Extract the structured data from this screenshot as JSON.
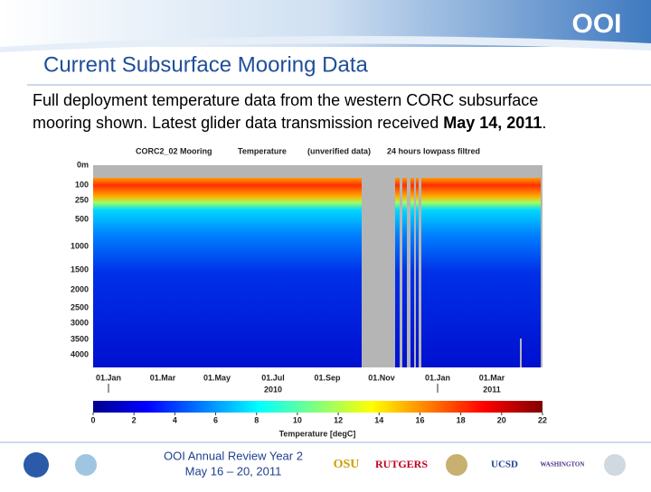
{
  "header": {
    "logo": "OOI",
    "title": "Current Subsurface Mooring Data"
  },
  "body": {
    "lines": [
      "Full deployment temperature data from the western CORC subsurface",
      "mooring shown.  Latest glider data transmission received "
    ],
    "bold": "May 14, 2011",
    "end": "."
  },
  "figure": {
    "titles": [
      "CORC2_02 Mooring",
      "Temperature",
      "(unverified data)",
      "24 hours lowpass filtred"
    ],
    "depth_labels": [
      "0m",
      "100",
      "250",
      "500",
      "1000",
      "1500",
      "2000",
      "2500",
      "3000",
      "3500",
      "4000"
    ],
    "month_labels": [
      "01.Jan",
      "01.Mar",
      "01.May",
      "01.Jul",
      "01.Sep",
      "01.Nov",
      "01.Jan",
      "01.Mar"
    ],
    "years": [
      "2010",
      "2011"
    ],
    "colorbar": {
      "ticks": [
        0,
        2,
        4,
        6,
        8,
        10,
        12,
        14,
        16,
        18,
        20,
        22
      ],
      "label": "Temperature  [degC]"
    }
  },
  "footer": {
    "lines": [
      "OOI Annual Review Year 2",
      "May 16 – 20, 2011"
    ],
    "logos": [
      "OSU",
      "RUTGERS",
      "UCSD",
      "WASHINGTON"
    ]
  }
}
